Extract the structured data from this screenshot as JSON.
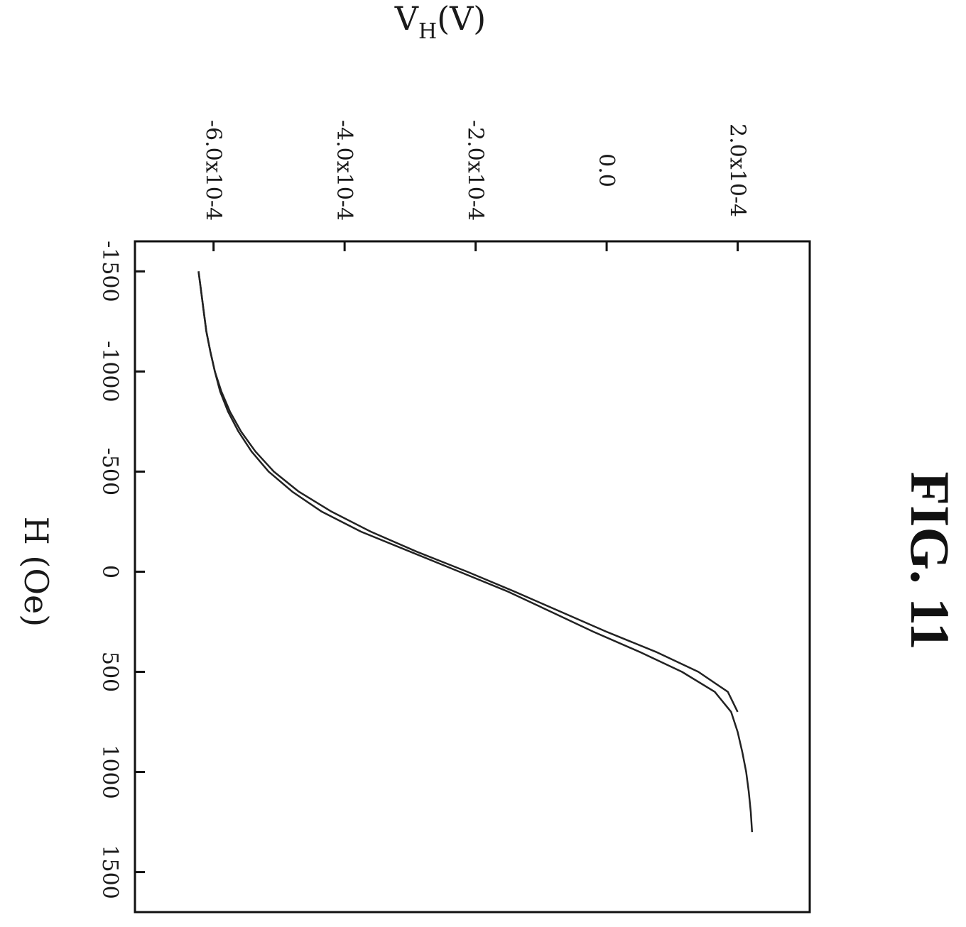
{
  "figure_label": "FIG. 11",
  "chart_data": {
    "type": "line",
    "xlabel": "H (Oe)",
    "ylabel": {
      "main": "V",
      "sub": "H",
      "unit": "(V)"
    },
    "xlim": [
      -1650,
      1700
    ],
    "ylim": [
      -0.00072,
      0.00031
    ],
    "x_ticks": [
      -1500,
      -1000,
      -500,
      0,
      500,
      1000,
      1500
    ],
    "x_tick_labels": [
      "-1500",
      "-1000",
      "-500",
      "0",
      "500",
      "1000",
      "1500"
    ],
    "y_ticks": [
      -0.0006,
      -0.0004,
      -0.0002,
      0.0,
      0.0002
    ],
    "y_tick_labels": [
      "-6.0x10-4",
      "-4.0x10-4",
      "-2.0x10-4",
      "0.0",
      "2.0x10-4"
    ],
    "grid": false,
    "orientation": "rotated 90° clockwise",
    "line_color": "#222222",
    "series": [
      {
        "x": [
          -1500,
          -1400,
          -1300,
          -1200,
          -1100,
          -1000,
          -900,
          -800,
          -700,
          -600,
          -500,
          -400,
          -300,
          -200,
          -100,
          0,
          100,
          200,
          300,
          400,
          500,
          600,
          700
        ],
        "y": [
          -0.000623,
          -0.000619,
          -0.000615,
          -0.000611,
          -0.000605,
          -0.000598,
          -0.000588,
          -0.000575,
          -0.000558,
          -0.000536,
          -0.000508,
          -0.00047,
          -0.00042,
          -0.00036,
          -0.00029,
          -0.000213,
          -0.00014,
          -7e-05,
          0.0,
          7.5e-05,
          0.00014,
          0.000185,
          0.0002
        ]
      },
      {
        "x": [
          -1500,
          -1400,
          -1300,
          -1200,
          -1100,
          -1000,
          -900,
          -800,
          -700,
          -600,
          -500,
          -400,
          -300,
          -200,
          -100,
          0,
          100,
          200,
          300,
          400,
          500,
          600,
          700,
          800,
          900,
          1000,
          1100,
          1200,
          1300
        ],
        "y": [
          -0.000623,
          -0.000619,
          -0.000615,
          -0.000611,
          -0.000605,
          -0.000598,
          -0.00059,
          -0.000578,
          -0.000562,
          -0.000542,
          -0.000516,
          -0.00048,
          -0.000435,
          -0.000375,
          -0.0003,
          -0.000225,
          -0.00015,
          -8.5e-05,
          -2e-05,
          5e-05,
          0.000115,
          0.000165,
          0.00019,
          0.0002,
          0.000207,
          0.000213,
          0.000217,
          0.00022,
          0.000222
        ]
      }
    ]
  }
}
